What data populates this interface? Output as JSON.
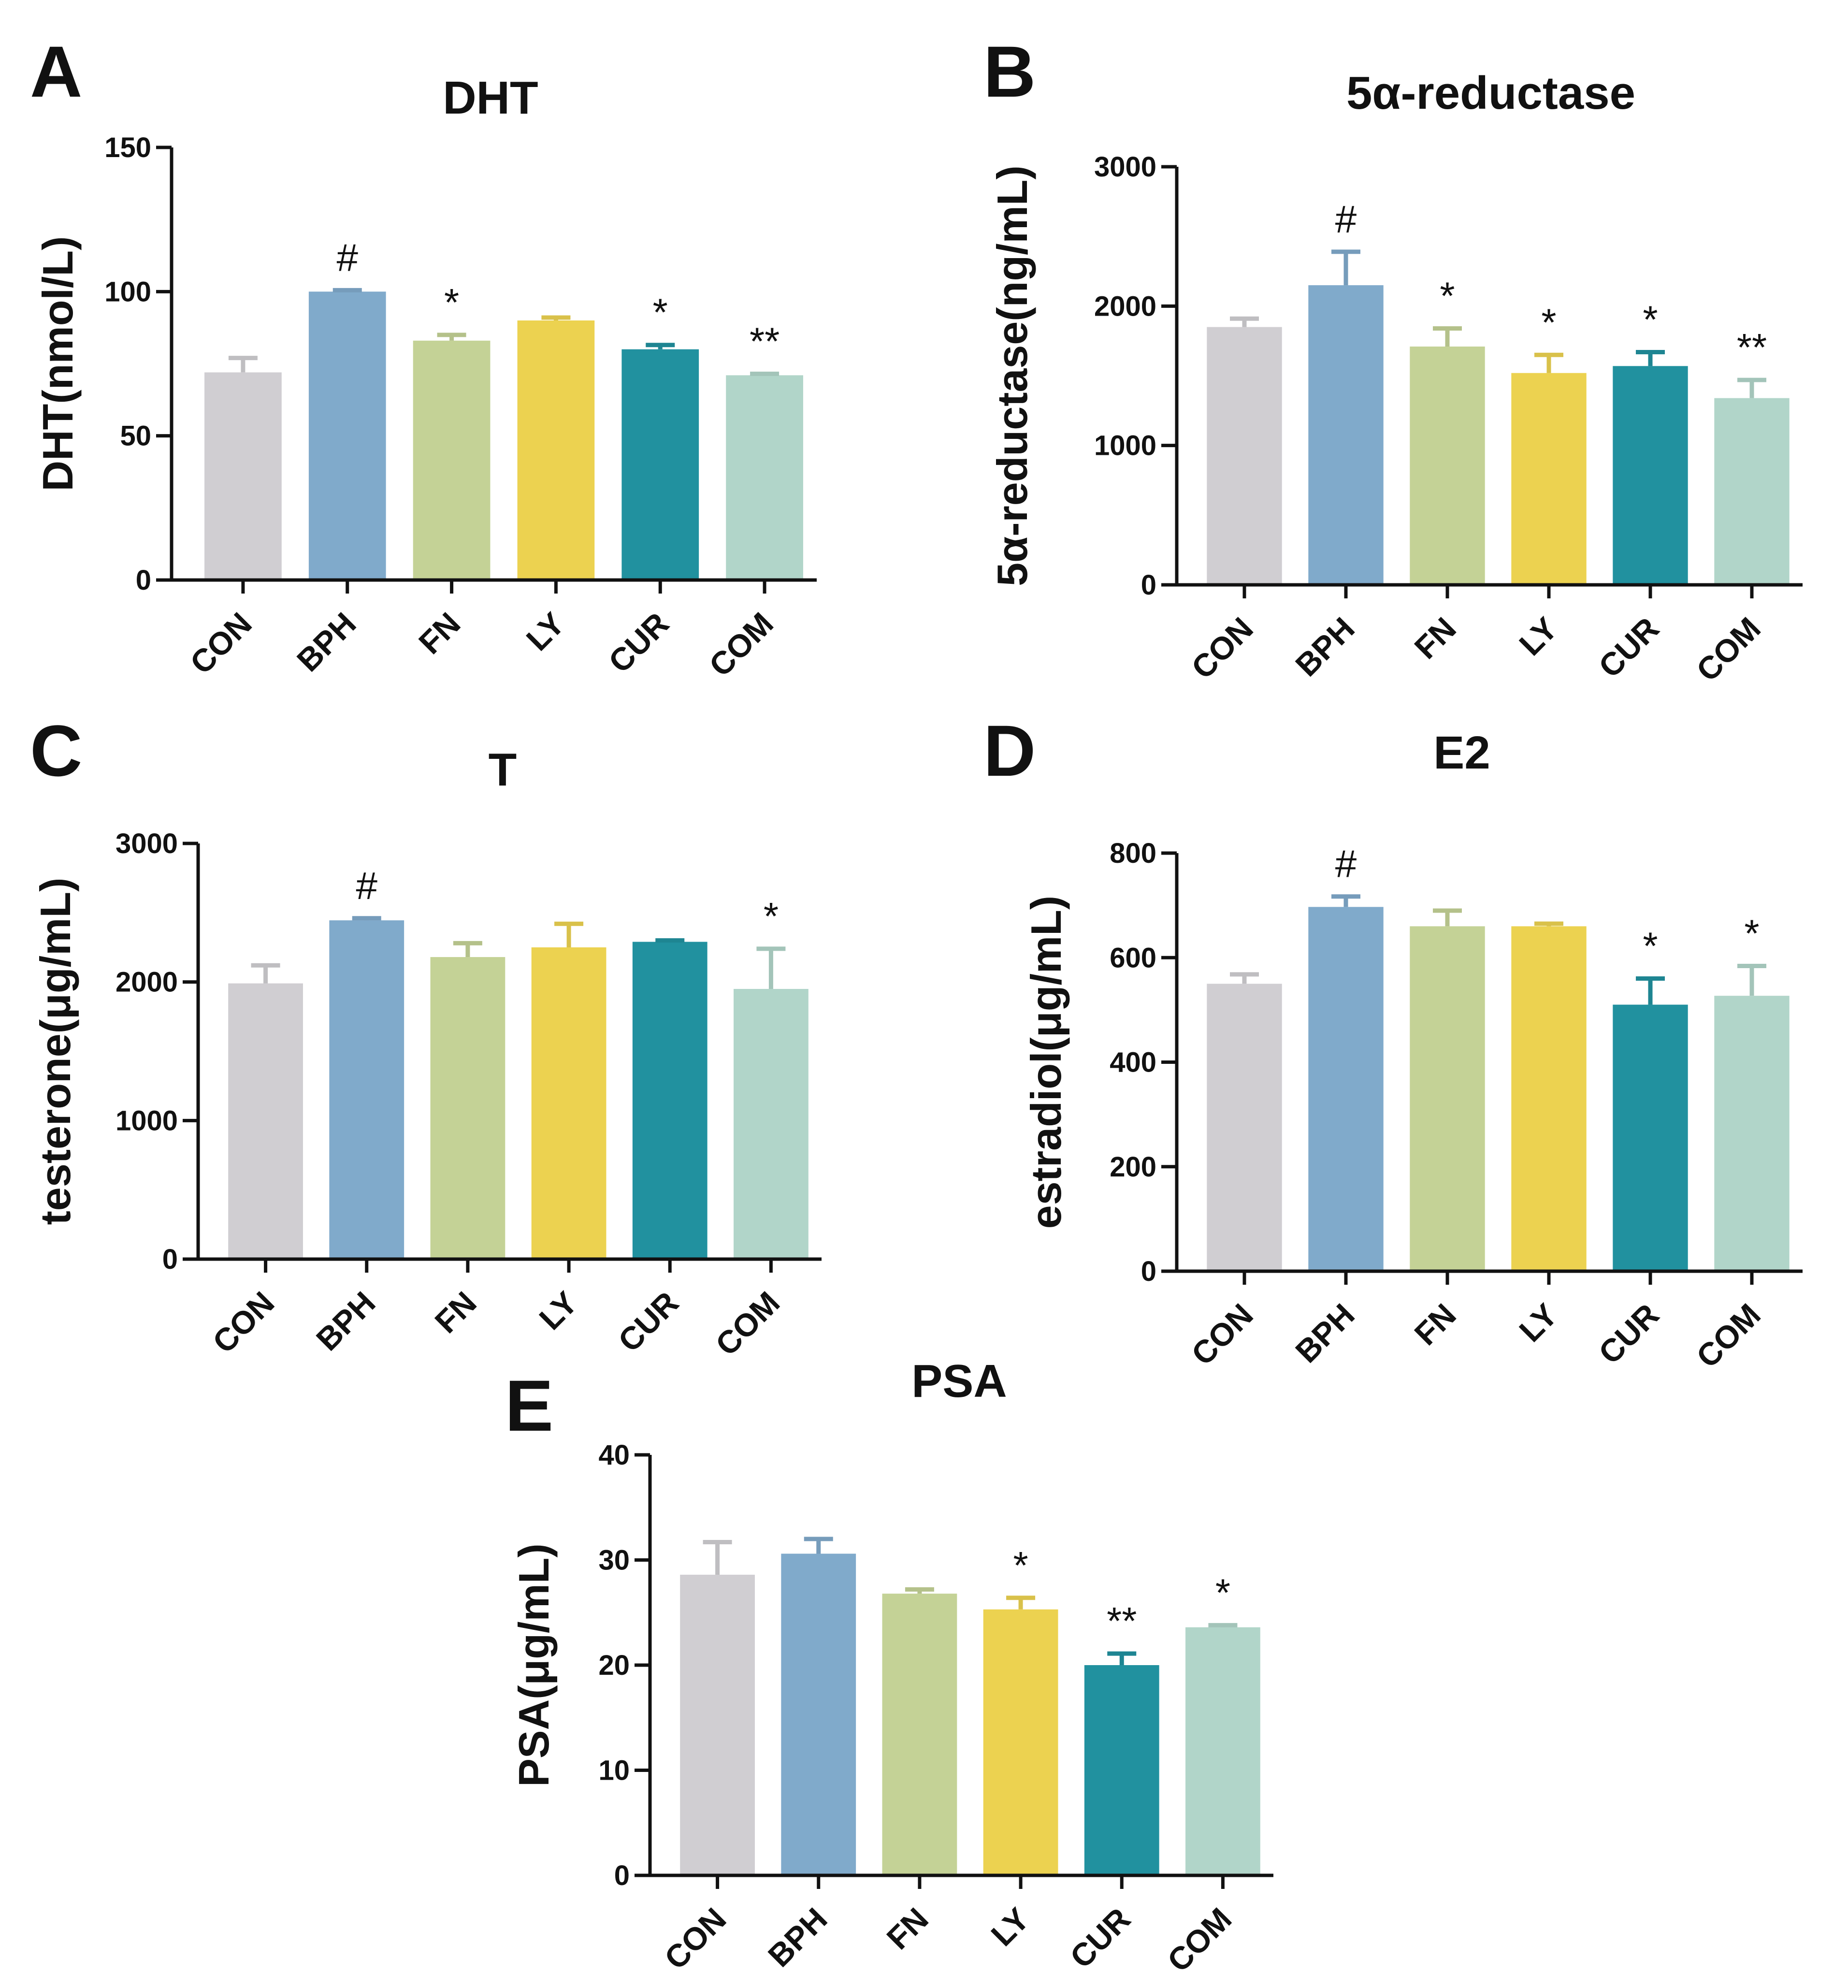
{
  "figure": {
    "panels": [
      "A",
      "B",
      "C",
      "D",
      "E"
    ]
  },
  "palette": {
    "CON": "#d0ced2",
    "BPH": "#80aacb",
    "FN": "#c4d296",
    "LY": "#ecd250",
    "CUR": "#21919f",
    "COM": "#b1d5c9"
  },
  "chart_data": [
    {
      "panel": "A",
      "type": "bar",
      "title": "DHT",
      "ylabel": "DHT(nmol/L)",
      "xlabel": "",
      "categories": [
        "CON",
        "BPH",
        "FN",
        "LY",
        "CUR",
        "COM"
      ],
      "values": [
        72,
        100,
        83,
        90,
        80,
        71
      ],
      "errors": [
        5,
        0.5,
        2,
        1,
        1.5,
        0.5
      ],
      "annotations": [
        "",
        "#",
        "*",
        "",
        "*",
        "**"
      ],
      "ylim": [
        0,
        150
      ],
      "yticks": [
        0,
        50,
        100,
        150
      ],
      "grid": false,
      "legend": "none"
    },
    {
      "panel": "B",
      "type": "bar",
      "title": "5α-reductase",
      "ylabel": "5α-reductase(ng/mL)",
      "xlabel": "",
      "categories": [
        "CON",
        "BPH",
        "FN",
        "LY",
        "CUR",
        "COM"
      ],
      "values": [
        1850,
        2150,
        1710,
        1520,
        1570,
        1340
      ],
      "errors": [
        60,
        240,
        130,
        130,
        100,
        130
      ],
      "annotations": [
        "",
        "#",
        "*",
        "*",
        "*",
        "**"
      ],
      "ylim": [
        0,
        3000
      ],
      "yticks": [
        0,
        1000,
        2000,
        3000
      ],
      "grid": false,
      "legend": "none"
    },
    {
      "panel": "C",
      "type": "bar",
      "title": "T",
      "ylabel": "testerone(μg/mL)",
      "xlabel": "",
      "categories": [
        "CON",
        "BPH",
        "FN",
        "LY",
        "CUR",
        "COM"
      ],
      "values": [
        1990,
        2445,
        2180,
        2250,
        2290,
        1950
      ],
      "errors": [
        130,
        15,
        100,
        170,
        10,
        290
      ],
      "annotations": [
        "",
        "#",
        "",
        "",
        "",
        "*"
      ],
      "ylim": [
        0,
        3000
      ],
      "yticks": [
        0,
        1000,
        2000,
        3000
      ],
      "grid": false,
      "legend": "none"
    },
    {
      "panel": "D",
      "type": "bar",
      "title": "E2",
      "ylabel": "estradiol(μg/mL)",
      "xlabel": "",
      "categories": [
        "CON",
        "BPH",
        "FN",
        "LY",
        "CUR",
        "COM"
      ],
      "values": [
        550,
        697,
        660,
        660,
        510,
        527
      ],
      "errors": [
        18,
        20,
        30,
        5,
        50,
        57
      ],
      "annotations": [
        "",
        "#",
        "",
        "",
        "*",
        "*"
      ],
      "ylim": [
        0,
        800
      ],
      "yticks": [
        0,
        200,
        400,
        600,
        800
      ],
      "grid": false,
      "legend": "none"
    },
    {
      "panel": "E",
      "type": "bar",
      "title": "PSA",
      "ylabel": "PSA(μg/mL)",
      "xlabel": "",
      "categories": [
        "CON",
        "BPH",
        "FN",
        "LY",
        "CUR",
        "COM"
      ],
      "values": [
        28.6,
        30.6,
        26.8,
        25.3,
        20.0,
        23.6
      ],
      "errors": [
        3.1,
        1.4,
        0.4,
        1.1,
        1.1,
        0.2
      ],
      "annotations": [
        "",
        "",
        "",
        "*",
        "**",
        "*"
      ],
      "ylim": [
        0,
        40
      ],
      "yticks": [
        0,
        10,
        20,
        30,
        40
      ],
      "grid": false,
      "legend": "none"
    }
  ]
}
